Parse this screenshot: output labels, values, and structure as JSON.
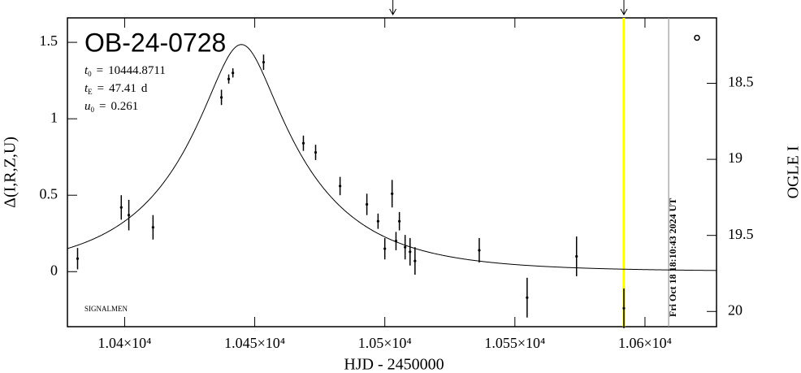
{
  "chart_data": {
    "type": "errorbar",
    "title": "OB-24-0728",
    "xlabel": "HJD - 2450000",
    "ylabel": "Δ(I,R,Z,U)",
    "y2label": "OGLE I",
    "credit": "SIGNALMEN",
    "timestamp": "Fri Oct 18 18:10:43 2024 UT",
    "params": [
      {
        "symbol": "t",
        "sub": "0",
        "relation": "=",
        "value": 10444.8711
      },
      {
        "symbol": "t",
        "sub": "E",
        "relation": "=",
        "value": 47.41,
        "unit": "d"
      },
      {
        "symbol": "u",
        "sub": "0",
        "relation": "=",
        "value": 0.261
      }
    ],
    "xlim": [
      10378,
      10627.5
    ],
    "ylim": [
      -0.36,
      1.66
    ],
    "y2lim": [
      20.1,
      18.07
    ],
    "xticks": [
      {
        "value": 10400,
        "label": "1.04×10⁴"
      },
      {
        "value": 10450,
        "label": "1.045×10⁴"
      },
      {
        "value": 10500,
        "label": "1.05×10⁴"
      },
      {
        "value": 10550,
        "label": "1.055×10⁴"
      },
      {
        "value": 10600,
        "label": "1.06×10⁴"
      }
    ],
    "yticks": [
      0,
      0.5,
      1,
      1.5
    ],
    "y2ticks": [
      18.5,
      19,
      19.5,
      20
    ],
    "x": [
      10381.9,
      10398.7,
      10401.6,
      10410.9,
      10437.2,
      10440.0,
      10441.6,
      10453.4,
      10468.7,
      10473.4,
      10482.8,
      10493.1,
      10497.4,
      10500.0,
      10502.8,
      10504.3,
      10505.6,
      10507.8,
      10509.7,
      10511.6,
      10536.3,
      10554.7,
      10573.7,
      10591.9
    ],
    "values": [
      0.085,
      0.42,
      0.37,
      0.29,
      1.14,
      1.26,
      1.3,
      1.37,
      0.84,
      0.78,
      0.56,
      0.44,
      0.33,
      0.15,
      0.51,
      0.2,
      0.33,
      0.16,
      0.13,
      0.07,
      0.14,
      -0.17,
      0.1,
      -0.24
    ],
    "errors": [
      0.07,
      0.08,
      0.1,
      0.08,
      0.05,
      0.03,
      0.03,
      0.05,
      0.05,
      0.05,
      0.06,
      0.07,
      0.05,
      0.07,
      0.09,
      0.06,
      0.06,
      0.08,
      0.09,
      0.09,
      0.08,
      0.13,
      0.13,
      0.13
    ],
    "color": "#000000",
    "model_color": "#000000",
    "vlines": [
      {
        "x": 10591.9,
        "color": "#ffff00"
      },
      {
        "x": 10609.1,
        "color": "#999999"
      }
    ],
    "arrows_x": [
      10503.1,
      10591.9
    ],
    "markers": [
      {
        "x": 10620,
        "y": 1.53
      }
    ]
  }
}
